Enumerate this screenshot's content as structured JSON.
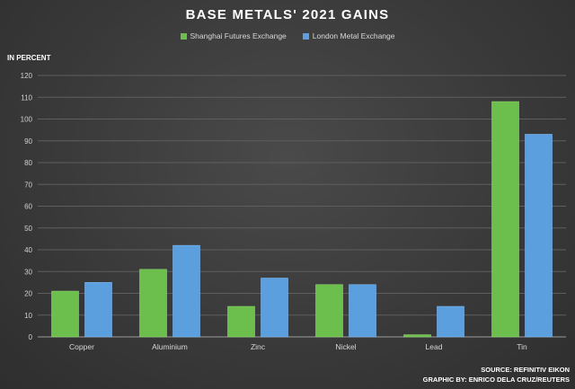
{
  "chart_data": {
    "type": "bar",
    "title": "BASE METALS' 2021 GAINS",
    "ylabel": "IN PERCENT",
    "categories": [
      "Copper",
      "Aluminium",
      "Zinc",
      "Nickel",
      "Lead",
      "Tin"
    ],
    "series": [
      {
        "name": "Shanghai Futures Exchange",
        "color": "#6cbf4c",
        "values": [
          21,
          31,
          14,
          24,
          1,
          108
        ]
      },
      {
        "name": "London Metal Exchange",
        "color": "#5b9fde",
        "values": [
          25,
          42,
          27,
          24,
          14,
          93
        ]
      }
    ],
    "ylim": [
      0,
      120
    ],
    "yticks": [
      0,
      10,
      20,
      30,
      40,
      50,
      60,
      70,
      80,
      90,
      100,
      110,
      120
    ],
    "grid": true,
    "legend": "top-center"
  },
  "footer": {
    "source": "SOURCE: REFINITIV EIKON",
    "credit": "GRAPHIC BY: ENRICO DELA CRUZ/REUTERS"
  }
}
